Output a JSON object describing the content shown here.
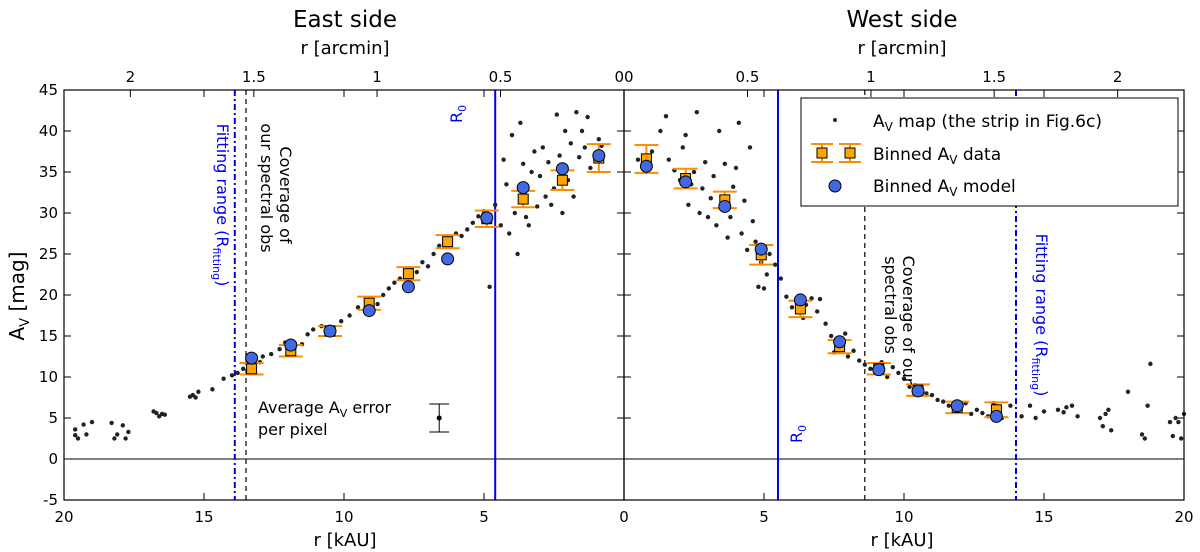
{
  "chart_data": [
    {
      "type": "scatter",
      "panel": "left",
      "title": "East side",
      "xlabel": "r [kAU]",
      "x2label": "r [arcmin]",
      "ylabel_main": "A",
      "ylabel_sub": "V",
      "ylabel_unit": " [mag]",
      "xlim": [
        20,
        0
      ],
      "ylim": [
        -5,
        45
      ],
      "x_ticks": [
        20,
        15,
        10,
        5,
        0
      ],
      "y_ticks": [
        -5,
        0,
        5,
        10,
        15,
        20,
        25,
        30,
        35,
        40,
        45
      ],
      "x2_ticks": [
        {
          "label": "2",
          "kau": 17.63
        },
        {
          "label": "1.5",
          "kau": 13.22
        },
        {
          "label": "1",
          "kau": 8.82
        },
        {
          "label": "0.5",
          "kau": 4.41
        },
        {
          "label": "00",
          "kau": 0
        }
      ],
      "vlines": [
        {
          "name": "fitting-range",
          "x": 13.9,
          "style": "dashdot",
          "color": "#0000ee"
        },
        {
          "name": "coverage",
          "x": 13.5,
          "style": "dashed",
          "color": "#000000"
        },
        {
          "name": "R0",
          "x": 4.6,
          "style": "solid",
          "color": "#0000ee"
        }
      ],
      "hline": 0,
      "labels": {
        "fitting_main": "Fitting range (R",
        "fitting_sub": "fitting",
        "fitting_end": ")",
        "coverage_1": "Coverage of",
        "coverage_2": "our spectral obs",
        "r0_main": "R",
        "r0_sub": "0",
        "avg_err_1a": "Average A",
        "avg_err_1b": "V",
        "avg_err_1c": " error",
        "avg_err_2": "per pixel"
      },
      "avg_error": {
        "x": 6.6,
        "y": 5.0,
        "err": 1.7
      },
      "map_points": [
        [
          19.6,
          3.6
        ],
        [
          19.5,
          2.5
        ],
        [
          19.3,
          4.2
        ],
        [
          19.2,
          3.0
        ],
        [
          19.6,
          2.9
        ],
        [
          19.0,
          4.5
        ],
        [
          18.3,
          4.4
        ],
        [
          18.1,
          3.0
        ],
        [
          17.9,
          4.1
        ],
        [
          17.8,
          2.5
        ],
        [
          17.7,
          3.3
        ],
        [
          18.2,
          2.5
        ],
        [
          16.8,
          5.8
        ],
        [
          16.6,
          5.2
        ],
        [
          16.5,
          5.5
        ],
        [
          16.4,
          5.4
        ],
        [
          16.7,
          5.6
        ],
        [
          15.5,
          7.6
        ],
        [
          15.4,
          7.8
        ],
        [
          15.2,
          8.2
        ],
        [
          15.3,
          7.5
        ],
        [
          14.7,
          8.5
        ],
        [
          14.3,
          9.8
        ],
        [
          14.0,
          10.2
        ],
        [
          13.8,
          10.5
        ],
        [
          13.6,
          11.0
        ],
        [
          13.4,
          11.2
        ],
        [
          13.2,
          12.0
        ],
        [
          13.0,
          11.8
        ],
        [
          12.9,
          12.5
        ],
        [
          12.6,
          12.8
        ],
        [
          12.3,
          13.4
        ],
        [
          12.1,
          14.2
        ],
        [
          11.8,
          13.6
        ],
        [
          11.5,
          14.0
        ],
        [
          11.3,
          15.2
        ],
        [
          11.1,
          15.8
        ],
        [
          10.8,
          16.2
        ],
        [
          10.6,
          16.0
        ],
        [
          10.4,
          15.5
        ],
        [
          10.1,
          16.8
        ],
        [
          9.8,
          17.5
        ],
        [
          9.5,
          18.5
        ],
        [
          9.2,
          17.8
        ],
        [
          9.0,
          19.2
        ],
        [
          8.8,
          18.9
        ],
        [
          8.6,
          20.0
        ],
        [
          8.4,
          20.8
        ],
        [
          8.2,
          21.5
        ],
        [
          8.0,
          22.0
        ],
        [
          7.8,
          21.0
        ],
        [
          7.6,
          23.2
        ],
        [
          7.4,
          22.8
        ],
        [
          7.2,
          24.0
        ],
        [
          7.0,
          23.5
        ],
        [
          6.8,
          25.0
        ],
        [
          6.6,
          26.0
        ],
        [
          6.4,
          26.5
        ],
        [
          6.2,
          26.8
        ],
        [
          6.0,
          27.5
        ],
        [
          5.8,
          27.2
        ],
        [
          5.6,
          28.0
        ],
        [
          5.4,
          28.8
        ],
        [
          5.2,
          29.6
        ],
        [
          5.0,
          30.2
        ],
        [
          4.8,
          21.0
        ],
        [
          4.6,
          31.0
        ],
        [
          4.4,
          28.5
        ],
        [
          4.3,
          36.5
        ],
        [
          4.2,
          33.5
        ],
        [
          4.1,
          27.5
        ],
        [
          4.0,
          39.5
        ],
        [
          3.9,
          30.0
        ],
        [
          3.8,
          25.0
        ],
        [
          3.7,
          41.0
        ],
        [
          3.6,
          36.0
        ],
        [
          3.5,
          29.5
        ],
        [
          3.4,
          28.5
        ],
        [
          3.3,
          35.0
        ],
        [
          3.2,
          37.5
        ],
        [
          3.1,
          30.8
        ],
        [
          3.0,
          34.5
        ],
        [
          2.9,
          38.0
        ],
        [
          2.8,
          32.0
        ],
        [
          2.7,
          36.2
        ],
        [
          2.6,
          31.0
        ],
        [
          2.5,
          33.0
        ],
        [
          2.4,
          42.0
        ],
        [
          2.3,
          37.0
        ],
        [
          2.2,
          30.0
        ],
        [
          2.1,
          40.0
        ],
        [
          2.0,
          34.0
        ],
        [
          1.9,
          38.5
        ],
        [
          1.8,
          32.0
        ],
        [
          1.7,
          42.3
        ],
        [
          1.6,
          36.8
        ],
        [
          1.5,
          40.0
        ],
        [
          1.4,
          38.0
        ],
        [
          1.3,
          41.7
        ],
        [
          1.2,
          35.5
        ],
        [
          1.0,
          37.0
        ],
        [
          0.9,
          39.0
        ],
        [
          0.8,
          38.2
        ]
      ],
      "binned_data": [
        [
          13.3,
          11.0,
          0.7
        ],
        [
          11.9,
          13.2,
          0.7
        ],
        [
          10.5,
          15.6,
          0.6
        ],
        [
          9.1,
          19.0,
          0.8
        ],
        [
          7.7,
          22.6,
          0.8
        ],
        [
          6.3,
          26.5,
          0.8
        ],
        [
          4.9,
          29.3,
          1.0
        ],
        [
          3.6,
          31.7,
          1.0
        ],
        [
          2.2,
          34.0,
          1.2
        ],
        [
          0.9,
          36.7,
          1.7
        ]
      ],
      "binned_model": [
        [
          13.3,
          12.3
        ],
        [
          11.9,
          13.9
        ],
        [
          10.5,
          15.6
        ],
        [
          9.1,
          18.1
        ],
        [
          7.7,
          21.0
        ],
        [
          6.3,
          24.4
        ],
        [
          4.9,
          29.4
        ],
        [
          3.6,
          33.1
        ],
        [
          2.2,
          35.4
        ],
        [
          0.9,
          37.0
        ]
      ]
    },
    {
      "type": "scatter",
      "panel": "right",
      "title": "West side",
      "xlabel": "r [kAU]",
      "x2label": "r [arcmin]",
      "xlim": [
        0,
        20
      ],
      "ylim": [
        -5,
        45
      ],
      "x_ticks": [
        0,
        5,
        10,
        15,
        20
      ],
      "x2_ticks": [
        {
          "label": "0.5",
          "kau": 4.41
        },
        {
          "label": "1",
          "kau": 8.82
        },
        {
          "label": "1.5",
          "kau": 13.22
        },
        {
          "label": "2",
          "kau": 17.63
        }
      ],
      "vlines": [
        {
          "name": "R0",
          "x": 5.5,
          "style": "solid",
          "color": "#0000ee"
        },
        {
          "name": "coverage",
          "x": 8.6,
          "style": "dashed",
          "color": "#000000"
        },
        {
          "name": "fitting-range",
          "x": 14.0,
          "style": "dashdot",
          "color": "#0000ee"
        }
      ],
      "hline": 0,
      "labels": {
        "coverage_1": "Coverage of our",
        "coverage_2": "spectral obs",
        "fitting_main": "Fitting range (R",
        "fitting_sub": "fitting",
        "fitting_end": ")",
        "r0_main": "R",
        "r0_sub": "0"
      },
      "legend": {
        "placement": "top-right",
        "entries": [
          {
            "key": "map",
            "text_a": "A",
            "text_sub": "V",
            "text_b": " map (the strip in Fig.6c)"
          },
          {
            "key": "data",
            "text_a": "Binned A",
            "text_sub": "V",
            "text_b": " data"
          },
          {
            "key": "model",
            "text_a": "Binned A",
            "text_sub": "V",
            "text_b": " model"
          }
        ]
      },
      "map_points": [
        [
          0.5,
          36.5
        ],
        [
          0.8,
          35.0
        ],
        [
          1.0,
          37.5
        ],
        [
          1.3,
          40.0
        ],
        [
          1.5,
          41.8
        ],
        [
          1.6,
          36.5
        ],
        [
          1.8,
          35.2
        ],
        [
          2.0,
          34.0
        ],
        [
          2.1,
          38.0
        ],
        [
          2.2,
          39.5
        ],
        [
          2.3,
          31.0
        ],
        [
          2.4,
          33.5
        ],
        [
          2.5,
          35.0
        ],
        [
          2.6,
          42.3
        ],
        [
          2.7,
          30.0
        ],
        [
          2.8,
          33.0
        ],
        [
          2.9,
          36.2
        ],
        [
          3.0,
          29.5
        ],
        [
          3.1,
          31.8
        ],
        [
          3.2,
          34.5
        ],
        [
          3.3,
          28.5
        ],
        [
          3.4,
          40.0
        ],
        [
          3.5,
          30.5
        ],
        [
          3.6,
          36.0
        ],
        [
          3.7,
          27.0
        ],
        [
          3.8,
          29.5
        ],
        [
          3.9,
          33.2
        ],
        [
          4.0,
          35.5
        ],
        [
          4.1,
          41.0
        ],
        [
          4.2,
          27.5
        ],
        [
          4.3,
          31.5
        ],
        [
          4.4,
          25.5
        ],
        [
          4.5,
          38.0
        ],
        [
          4.6,
          29.0
        ],
        [
          4.7,
          26.5
        ],
        [
          4.8,
          21.0
        ],
        [
          4.9,
          24.0
        ],
        [
          5.0,
          20.8
        ],
        [
          5.1,
          22.5
        ],
        [
          5.2,
          25.0
        ],
        [
          5.4,
          23.7
        ],
        [
          5.6,
          22.0
        ],
        [
          5.8,
          19.8
        ],
        [
          6.0,
          18.5
        ],
        [
          6.2,
          19.5
        ],
        [
          6.4,
          17.2
        ],
        [
          6.5,
          18.8
        ],
        [
          6.7,
          19.6
        ],
        [
          6.9,
          18.0
        ],
        [
          7.0,
          19.5
        ],
        [
          7.2,
          16.5
        ],
        [
          7.4,
          15.0
        ],
        [
          7.5,
          13.0
        ],
        [
          7.7,
          14.5
        ],
        [
          7.9,
          15.3
        ],
        [
          8.0,
          12.5
        ],
        [
          8.2,
          13.2
        ],
        [
          8.4,
          12.0
        ],
        [
          8.6,
          11.5
        ],
        [
          8.8,
          11.0
        ],
        [
          9.0,
          10.5
        ],
        [
          9.2,
          11.8
        ],
        [
          9.4,
          10.0
        ],
        [
          9.6,
          11.2
        ],
        [
          9.8,
          10.5
        ],
        [
          10.0,
          9.8
        ],
        [
          10.2,
          8.8
        ],
        [
          10.4,
          9.0
        ],
        [
          10.6,
          8.3
        ],
        [
          10.8,
          8.0
        ],
        [
          11.0,
          7.8
        ],
        [
          11.2,
          7.2
        ],
        [
          11.4,
          7.0
        ],
        [
          11.6,
          6.5
        ],
        [
          11.8,
          6.3
        ],
        [
          12.0,
          5.8
        ],
        [
          12.2,
          6.8
        ],
        [
          12.4,
          5.5
        ],
        [
          12.6,
          6.0
        ],
        [
          12.8,
          5.6
        ],
        [
          13.0,
          5.2
        ],
        [
          13.2,
          6.8
        ],
        [
          13.3,
          5.8
        ],
        [
          13.5,
          5.0
        ],
        [
          13.8,
          6.5
        ],
        [
          14.2,
          5.2
        ],
        [
          14.5,
          6.5
        ],
        [
          14.7,
          5.0
        ],
        [
          15.0,
          5.8
        ],
        [
          15.5,
          6.0
        ],
        [
          15.7,
          5.7
        ],
        [
          15.8,
          6.3
        ],
        [
          16.0,
          6.5
        ],
        [
          16.2,
          5.2
        ],
        [
          17.0,
          5.0
        ],
        [
          17.1,
          4.0
        ],
        [
          17.2,
          5.5
        ],
        [
          17.3,
          6.0
        ],
        [
          17.4,
          3.5
        ],
        [
          18.0,
          8.2
        ],
        [
          18.5,
          3.0
        ],
        [
          18.6,
          2.5
        ],
        [
          18.7,
          6.5
        ],
        [
          18.8,
          11.6
        ],
        [
          19.5,
          4.5
        ],
        [
          19.6,
          2.8
        ],
        [
          19.7,
          5.0
        ],
        [
          19.8,
          4.5
        ],
        [
          19.9,
          2.5
        ],
        [
          20.0,
          5.5
        ]
      ],
      "binned_data": [
        [
          0.8,
          36.6,
          1.7
        ],
        [
          2.2,
          34.2,
          1.2
        ],
        [
          3.6,
          31.6,
          1.0
        ],
        [
          4.9,
          24.9,
          1.2
        ],
        [
          6.3,
          18.3,
          1.0
        ],
        [
          7.7,
          13.7,
          0.8
        ],
        [
          9.1,
          11.0,
          0.7
        ],
        [
          10.5,
          8.4,
          0.7
        ],
        [
          11.9,
          6.3,
          0.7
        ],
        [
          13.3,
          6.0,
          0.9
        ]
      ],
      "binned_model": [
        [
          0.8,
          35.7
        ],
        [
          2.2,
          33.8
        ],
        [
          3.6,
          30.8
        ],
        [
          4.9,
          25.6
        ],
        [
          6.3,
          19.4
        ],
        [
          7.7,
          14.3
        ],
        [
          9.1,
          10.9
        ],
        [
          10.5,
          8.3
        ],
        [
          11.9,
          6.5
        ],
        [
          13.3,
          5.2
        ]
      ]
    }
  ]
}
